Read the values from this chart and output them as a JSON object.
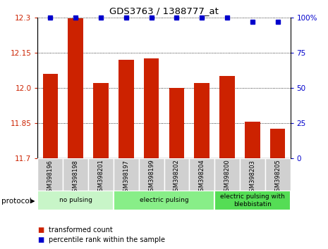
{
  "title": "GDS3763 / 1388777_at",
  "categories": [
    "GSM398196",
    "GSM398198",
    "GSM398201",
    "GSM398197",
    "GSM398199",
    "GSM398202",
    "GSM398204",
    "GSM398200",
    "GSM398203",
    "GSM398205"
  ],
  "bar_values": [
    12.06,
    12.295,
    12.02,
    12.12,
    12.125,
    12.0,
    12.02,
    12.05,
    11.855,
    11.825
  ],
  "dot_values": [
    100,
    100,
    100,
    100,
    100,
    100,
    100,
    100,
    97,
    97
  ],
  "ylim_left": [
    11.7,
    12.3
  ],
  "ylim_right": [
    0,
    100
  ],
  "yticks_left": [
    11.7,
    11.85,
    12.0,
    12.15,
    12.3
  ],
  "yticks_right": [
    0,
    25,
    50,
    75,
    100
  ],
  "bar_color": "#cc2200",
  "dot_color": "#0000cc",
  "bg_color": "#ffffff",
  "protocol_groups": [
    {
      "label": "no pulsing",
      "start": 0,
      "end": 2,
      "color": "#c8f5c8"
    },
    {
      "label": "electric pulsing",
      "start": 3,
      "end": 6,
      "color": "#88ee88"
    },
    {
      "label": "electric pulsing with\nblebbistatin",
      "start": 7,
      "end": 9,
      "color": "#55dd55"
    }
  ],
  "legend_red_label": "transformed count",
  "legend_blue_label": "percentile rank within the sample",
  "protocol_label": "protocol"
}
